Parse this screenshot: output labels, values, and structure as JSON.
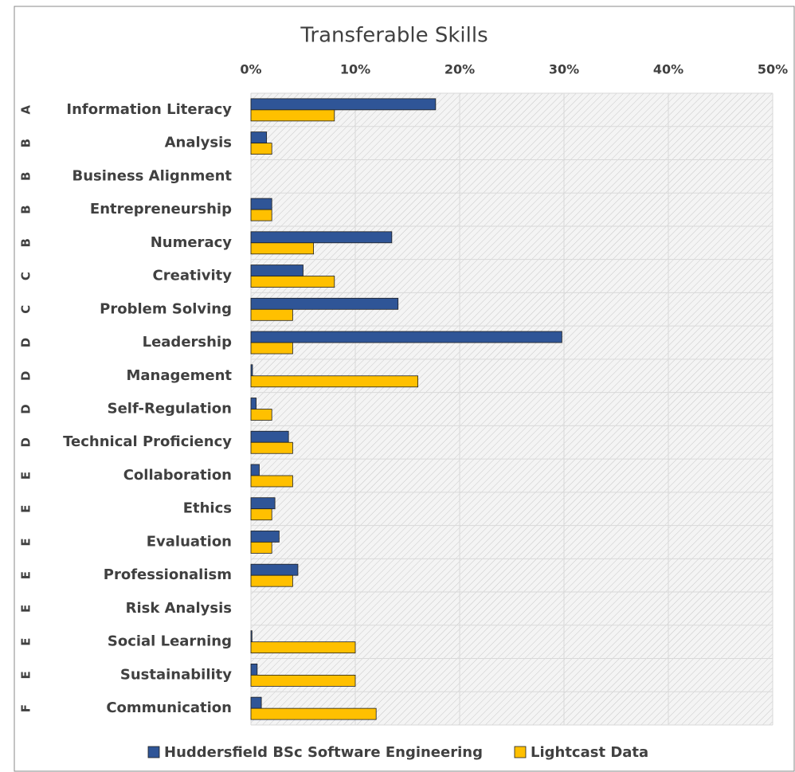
{
  "chart_data": {
    "type": "bar",
    "orientation": "horizontal",
    "title": "Transferable Skills",
    "group_labels": [
      "A",
      "B",
      "B",
      "B",
      "B",
      "C",
      "C",
      "D",
      "D",
      "D",
      "D",
      "E",
      "E",
      "E",
      "E",
      "E",
      "E",
      "E",
      "F"
    ],
    "categories": [
      "Information Literacy",
      "Analysis",
      "Business Alignment",
      "Entrepreneurship",
      "Numeracy",
      "Creativity",
      "Problem Solving",
      "Leadership",
      "Management",
      "Self-Regulation",
      "Technical Proficiency",
      "Collaboration",
      "Ethics",
      "Evaluation",
      "Professionalism",
      "Risk Analysis",
      "Social Learning",
      "Sustainability",
      "Communication"
    ],
    "series": [
      {
        "name": "Huddersfield BSc Software Engineering",
        "color": "#2f5597",
        "values": [
          17.7,
          1.5,
          0,
          2.0,
          13.5,
          5.0,
          14.1,
          29.8,
          0.15,
          0.5,
          3.6,
          0.8,
          2.3,
          2.7,
          4.5,
          0,
          0.1,
          0.6,
          1.0
        ]
      },
      {
        "name": "Lightcast Data",
        "color": "#ffc000",
        "values": [
          8.0,
          2.0,
          0,
          2.0,
          6.0,
          8.0,
          4.0,
          4.0,
          16.0,
          2.0,
          4.0,
          4.0,
          2.0,
          2.0,
          4.0,
          0,
          10.0,
          10.0,
          12.0
        ]
      }
    ],
    "xlim": [
      0,
      50
    ],
    "xticks": [
      {
        "value": 0,
        "label": "0%"
      },
      {
        "value": 10,
        "label": "10%"
      },
      {
        "value": 20,
        "label": "20%"
      },
      {
        "value": 30,
        "label": "30%"
      },
      {
        "value": 40,
        "label": "40%"
      },
      {
        "value": 50,
        "label": "50%"
      }
    ],
    "grid": true,
    "hatched_background": true,
    "legend": "bottom"
  }
}
